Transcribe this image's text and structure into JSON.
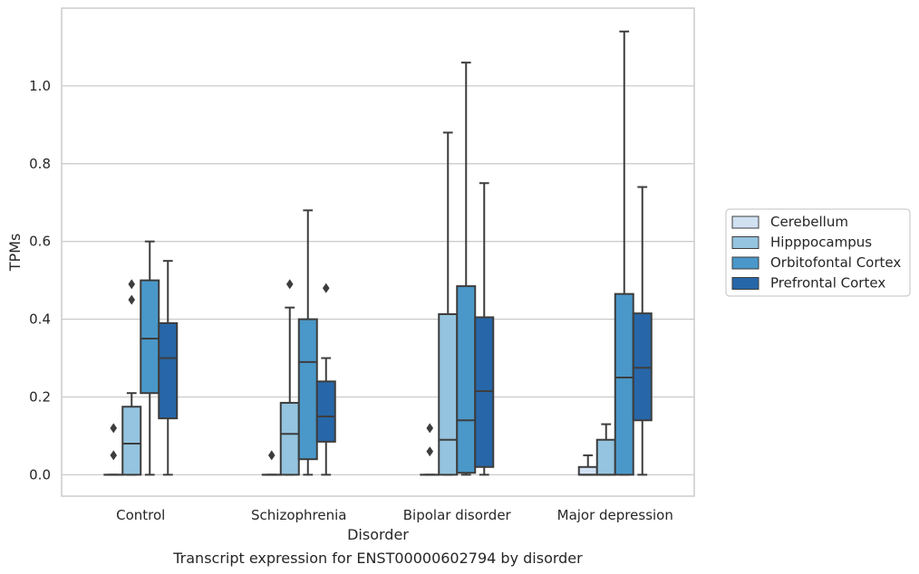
{
  "chart_data": {
    "type": "box",
    "xlabel": "Disorder",
    "ylabel": "TPMs",
    "caption": "Transcript expression for ENST00000602794 by disorder",
    "ylim": [
      -0.055,
      1.2
    ],
    "yticks": [
      "0.0",
      "0.2",
      "0.4",
      "0.6",
      "0.8",
      "1.0"
    ],
    "grid": "horizontal",
    "legend_position": "right",
    "categories": [
      "Control",
      "Schizophrenia",
      "Bipolar disorder",
      "Major depression"
    ],
    "series": [
      {
        "name": "Cerebellum",
        "color": "#d0e1f2",
        "boxes": [
          {
            "whislo": 0,
            "q1": 0,
            "med": 0,
            "q3": 0,
            "whishi": 0,
            "fliers": [
              0.05,
              0.12
            ]
          },
          {
            "whislo": 0,
            "q1": 0,
            "med": 0,
            "q3": 0,
            "whishi": 0,
            "fliers": [
              0.05
            ]
          },
          {
            "whislo": 0,
            "q1": 0,
            "med": 0,
            "q3": 0,
            "whishi": 0,
            "fliers": [
              0.06,
              0.12
            ]
          },
          {
            "whislo": 0,
            "q1": 0,
            "med": 0,
            "q3": 0.02,
            "whishi": 0.05,
            "fliers": []
          }
        ]
      },
      {
        "name": "Hipppocampus",
        "color": "#94c4df",
        "boxes": [
          {
            "whislo": 0,
            "q1": 0,
            "med": 0.08,
            "q3": 0.175,
            "whishi": 0.21,
            "fliers": [
              0.45,
              0.49
            ]
          },
          {
            "whislo": 0,
            "q1": 0,
            "med": 0.105,
            "q3": 0.185,
            "whishi": 0.43,
            "fliers": [
              0.49
            ]
          },
          {
            "whislo": 0,
            "q1": 0,
            "med": 0.09,
            "q3": 0.413,
            "whishi": 0.88,
            "fliers": []
          },
          {
            "whislo": 0,
            "q1": 0,
            "med": 0,
            "q3": 0.09,
            "whishi": 0.13,
            "fliers": []
          }
        ]
      },
      {
        "name": "Orbitofontal Cortex",
        "color": "#4a98c9",
        "boxes": [
          {
            "whislo": 0,
            "q1": 0.21,
            "med": 0.35,
            "q3": 0.5,
            "whishi": 0.6,
            "fliers": []
          },
          {
            "whislo": 0,
            "q1": 0.04,
            "med": 0.29,
            "q3": 0.4,
            "whishi": 0.68,
            "fliers": []
          },
          {
            "whislo": 0,
            "q1": 0.005,
            "med": 0.14,
            "q3": 0.485,
            "whishi": 1.06,
            "fliers": []
          },
          {
            "whislo": 0,
            "q1": 0,
            "med": 0.25,
            "q3": 0.465,
            "whishi": 1.14,
            "fliers": []
          }
        ]
      },
      {
        "name": "Prefrontal Cortex",
        "color": "#2767a9",
        "boxes": [
          {
            "whislo": 0,
            "q1": 0.145,
            "med": 0.3,
            "q3": 0.39,
            "whishi": 0.55,
            "fliers": []
          },
          {
            "whislo": 0,
            "q1": 0.085,
            "med": 0.15,
            "q3": 0.24,
            "whishi": 0.3,
            "fliers": [
              0.48
            ]
          },
          {
            "whislo": 0,
            "q1": 0.02,
            "med": 0.215,
            "q3": 0.405,
            "whishi": 0.75,
            "fliers": []
          },
          {
            "whislo": 0,
            "q1": 0.14,
            "med": 0.275,
            "q3": 0.415,
            "whishi": 0.74,
            "fliers": []
          }
        ]
      }
    ]
  }
}
